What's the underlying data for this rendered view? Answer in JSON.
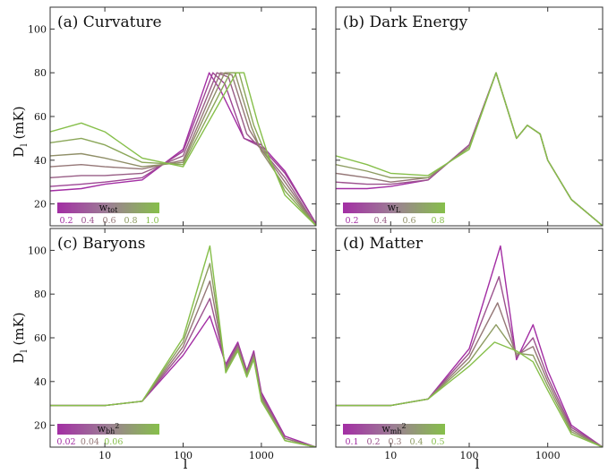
{
  "chart_data": [
    {
      "type": "line",
      "title": "(a) Curvature",
      "ylabel": "D_l (mK)",
      "xscale": "log",
      "xlim": [
        2,
        5000
      ],
      "ylim": [
        10,
        110
      ],
      "yticks": [
        "100",
        "80",
        "60",
        "40",
        "20"
      ],
      "xticks": [],
      "legend": {
        "label": "w_tot",
        "ticks": [
          "0.2",
          "0.4",
          "0.6",
          "0.8",
          "1.0"
        ],
        "colors": [
          "#a32ea4",
          "#86bf4a"
        ],
        "placement": "bottom-left"
      },
      "series": [
        {
          "x": [
            2,
            5,
            10,
            30,
            100,
            215,
            300,
            600,
            1000,
            2000,
            5000
          ],
          "y": [
            26,
            27,
            29,
            31,
            45,
            80,
            72,
            50,
            47,
            35,
            11
          ]
        },
        {
          "x": [
            2,
            5,
            10,
            30,
            100,
            240,
            340,
            600,
            1000,
            2000,
            5000
          ],
          "y": [
            28,
            29,
            30,
            32,
            44,
            80,
            75,
            50,
            46,
            34,
            11
          ]
        },
        {
          "x": [
            2,
            5,
            10,
            30,
            100,
            270,
            380,
            650,
            1000,
            2000,
            5000
          ],
          "y": [
            32,
            33,
            33,
            34,
            42,
            80,
            78,
            52,
            45,
            32,
            10
          ]
        },
        {
          "x": [
            2,
            5,
            10,
            30,
            100,
            300,
            420,
            700,
            1000,
            2000,
            5000
          ],
          "y": [
            37,
            38,
            37,
            36,
            40,
            80,
            79,
            54,
            45,
            30,
            10
          ]
        },
        {
          "x": [
            2,
            5,
            10,
            30,
            100,
            340,
            460,
            750,
            1000,
            2000,
            5000
          ],
          "y": [
            42,
            43,
            41,
            37,
            39,
            80,
            80,
            55,
            44,
            28,
            10
          ]
        },
        {
          "x": [
            2,
            5,
            10,
            30,
            100,
            400,
            520,
            800,
            1100,
            2000,
            5000
          ],
          "y": [
            48,
            50,
            47,
            39,
            38,
            80,
            80,
            56,
            44,
            26,
            10
          ]
        },
        {
          "x": [
            2,
            5,
            10,
            30,
            100,
            480,
            600,
            900,
            1200,
            2000,
            5000
          ],
          "y": [
            53,
            57,
            53,
            41,
            37,
            80,
            80,
            57,
            43,
            24,
            10
          ]
        }
      ]
    },
    {
      "type": "line",
      "title": "(b) Dark Energy",
      "ylabel": "",
      "xscale": "log",
      "xlim": [
        2,
        5000
      ],
      "ylim": [
        10,
        110
      ],
      "yticks": [],
      "xticks": [],
      "legend": {
        "label": "w_L",
        "ticks": [
          "0.2",
          "0.4",
          "0.6",
          "0.8"
        ],
        "colors": [
          "#a32ea4",
          "#86bf4a"
        ],
        "placement": "bottom-left"
      },
      "series": [
        {
          "x": [
            2,
            5,
            10,
            30,
            100,
            220,
            400,
            550,
            800,
            1000,
            2000,
            5000
          ],
          "y": [
            27,
            27,
            28,
            31,
            47,
            80,
            50,
            56,
            52,
            40,
            22,
            10
          ]
        },
        {
          "x": [
            2,
            5,
            10,
            30,
            100,
            220,
            400,
            550,
            800,
            1000,
            2000,
            5000
          ],
          "y": [
            30,
            29,
            29,
            31,
            47,
            80,
            50,
            56,
            52,
            40,
            22,
            10
          ]
        },
        {
          "x": [
            2,
            5,
            10,
            30,
            100,
            220,
            400,
            550,
            800,
            1000,
            2000,
            5000
          ],
          "y": [
            34,
            32,
            30,
            32,
            46,
            80,
            50,
            56,
            52,
            40,
            22,
            10
          ]
        },
        {
          "x": [
            2,
            5,
            10,
            30,
            100,
            220,
            400,
            550,
            800,
            1000,
            2000,
            5000
          ],
          "y": [
            38,
            35,
            32,
            32,
            46,
            80,
            50,
            56,
            52,
            40,
            22,
            10
          ]
        },
        {
          "x": [
            2,
            5,
            10,
            30,
            100,
            220,
            400,
            550,
            800,
            1000,
            2000,
            5000
          ],
          "y": [
            42,
            38,
            34,
            33,
            45,
            80,
            50,
            56,
            52,
            40,
            22,
            10
          ]
        }
      ]
    },
    {
      "type": "line",
      "title": "(c) Baryons",
      "ylabel": "D_l (mK)",
      "xlabel": "l",
      "xscale": "log",
      "xlim": [
        2,
        5000
      ],
      "ylim": [
        10,
        110
      ],
      "yticks": [
        "100",
        "80",
        "60",
        "40",
        "20"
      ],
      "xticks": [
        "10",
        "100",
        "1000"
      ],
      "legend": {
        "label": "w_bh^2",
        "ticks": [
          "0.02",
          "0.04",
          "0.06"
        ],
        "colors": [
          "#a32ea4",
          "#86bf4a"
        ],
        "placement": "bottom-left"
      },
      "series": [
        {
          "x": [
            2,
            5,
            10,
            30,
            100,
            220,
            350,
            500,
            650,
            800,
            1000,
            2000,
            5000
          ],
          "y": [
            29,
            29,
            29,
            31,
            52,
            70,
            48,
            58,
            45,
            54,
            35,
            15,
            10
          ]
        },
        {
          "x": [
            2,
            5,
            10,
            30,
            100,
            220,
            350,
            500,
            650,
            800,
            1000,
            2000,
            5000
          ],
          "y": [
            29,
            29,
            29,
            31,
            54,
            78,
            47,
            57,
            44,
            53,
            34,
            14,
            10
          ]
        },
        {
          "x": [
            2,
            5,
            10,
            30,
            100,
            220,
            350,
            500,
            650,
            800,
            1000,
            2000,
            5000
          ],
          "y": [
            29,
            29,
            29,
            31,
            56,
            86,
            46,
            56,
            44,
            52,
            33,
            14,
            10
          ]
        },
        {
          "x": [
            2,
            5,
            10,
            30,
            100,
            220,
            350,
            500,
            650,
            800,
            1000,
            2000,
            5000
          ],
          "y": [
            29,
            29,
            29,
            31,
            58,
            94,
            45,
            55,
            43,
            51,
            32,
            13,
            10
          ]
        },
        {
          "x": [
            2,
            5,
            10,
            30,
            100,
            220,
            350,
            500,
            650,
            800,
            1000,
            2000,
            5000
          ],
          "y": [
            29,
            29,
            29,
            31,
            60,
            102,
            44,
            54,
            42,
            50,
            31,
            13,
            10
          ]
        }
      ]
    },
    {
      "type": "line",
      "title": "(d) Matter",
      "ylabel": "",
      "xlabel": "l",
      "xscale": "log",
      "xlim": [
        2,
        5000
      ],
      "ylim": [
        10,
        110
      ],
      "yticks": [],
      "xticks": [
        "10",
        "100",
        "1000"
      ],
      "legend": {
        "label": "w_mh^2",
        "ticks": [
          "0.1",
          "0.2",
          "0.3",
          "0.4",
          "0.5"
        ],
        "colors": [
          "#a32ea4",
          "#86bf4a"
        ],
        "placement": "bottom-left"
      },
      "series": [
        {
          "x": [
            2,
            5,
            10,
            30,
            100,
            250,
            400,
            650,
            1000,
            2000,
            5000
          ],
          "y": [
            29,
            29,
            29,
            32,
            55,
            102,
            50,
            66,
            45,
            20,
            10
          ]
        },
        {
          "x": [
            2,
            5,
            10,
            30,
            100,
            240,
            400,
            650,
            1000,
            2000,
            5000
          ],
          "y": [
            29,
            29,
            29,
            32,
            53,
            88,
            51,
            60,
            42,
            19,
            10
          ]
        },
        {
          "x": [
            2,
            5,
            10,
            30,
            100,
            230,
            400,
            650,
            1000,
            2000,
            5000
          ],
          "y": [
            29,
            29,
            29,
            32,
            51,
            76,
            52,
            56,
            40,
            18,
            10
          ]
        },
        {
          "x": [
            2,
            5,
            10,
            30,
            100,
            220,
            400,
            650,
            1000,
            2000,
            5000
          ],
          "y": [
            29,
            29,
            29,
            32,
            49,
            66,
            53,
            52,
            38,
            17,
            10
          ]
        },
        {
          "x": [
            2,
            5,
            10,
            30,
            100,
            210,
            400,
            650,
            1000,
            2000,
            5000
          ],
          "y": [
            29,
            29,
            29,
            32,
            47,
            58,
            54,
            49,
            36,
            16,
            10
          ]
        }
      ]
    }
  ]
}
